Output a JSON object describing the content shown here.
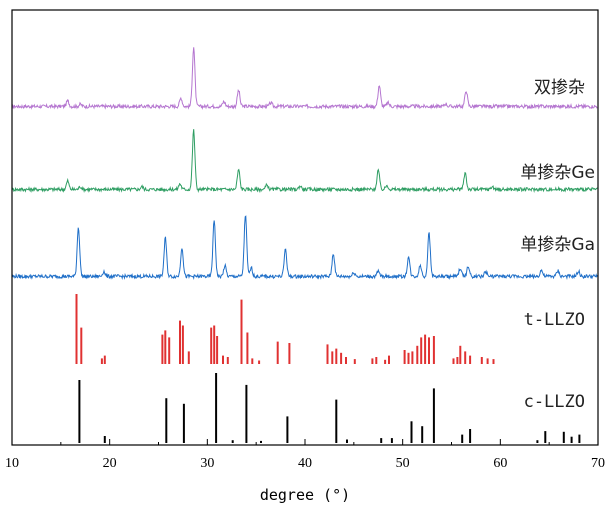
{
  "chart_data": {
    "type": "line",
    "xlabel": "degree (°)",
    "ylabel": "",
    "xlim": [
      10,
      70
    ],
    "xticks": [
      10,
      20,
      30,
      40,
      50,
      60,
      70
    ],
    "grid": false,
    "y_axis_ticks": false,
    "series": [
      {
        "name": "双掺杂",
        "style": "line",
        "color": "#b576d0",
        "baseline": 0.08,
        "peaks": [
          {
            "x": 15.7,
            "y": 0.08
          },
          {
            "x": 17.0,
            "y": 0.03
          },
          {
            "x": 27.3,
            "y": 0.12
          },
          {
            "x": 28.6,
            "y": 0.85
          },
          {
            "x": 31.7,
            "y": 0.07
          },
          {
            "x": 33.2,
            "y": 0.23
          },
          {
            "x": 36.5,
            "y": 0.05
          },
          {
            "x": 47.6,
            "y": 0.3
          },
          {
            "x": 48.5,
            "y": 0.05
          },
          {
            "x": 54.4,
            "y": 0.04
          },
          {
            "x": 56.5,
            "y": 0.23
          }
        ]
      },
      {
        "name": "单掺杂Ge",
        "style": "line",
        "color": "#2f9e63",
        "baseline": 0.08,
        "peaks": [
          {
            "x": 15.7,
            "y": 0.12
          },
          {
            "x": 17.0,
            "y": 0.04
          },
          {
            "x": 23.3,
            "y": 0.04
          },
          {
            "x": 27.2,
            "y": 0.08
          },
          {
            "x": 28.6,
            "y": 0.85
          },
          {
            "x": 33.2,
            "y": 0.28
          },
          {
            "x": 36.1,
            "y": 0.06
          },
          {
            "x": 39.5,
            "y": 0.05
          },
          {
            "x": 47.5,
            "y": 0.28
          },
          {
            "x": 48.4,
            "y": 0.06
          },
          {
            "x": 56.4,
            "y": 0.24
          },
          {
            "x": 59.2,
            "y": 0.04
          }
        ]
      },
      {
        "name": "单掺杂Ga",
        "style": "line",
        "color": "#1f6fc8",
        "baseline": 0.08,
        "peaks": [
          {
            "x": 16.8,
            "y": 0.7
          },
          {
            "x": 19.4,
            "y": 0.07
          },
          {
            "x": 25.7,
            "y": 0.55
          },
          {
            "x": 27.4,
            "y": 0.42
          },
          {
            "x": 30.7,
            "y": 0.8
          },
          {
            "x": 31.8,
            "y": 0.15
          },
          {
            "x": 33.9,
            "y": 0.88
          },
          {
            "x": 34.5,
            "y": 0.12
          },
          {
            "x": 38.0,
            "y": 0.4
          },
          {
            "x": 42.9,
            "y": 0.33
          },
          {
            "x": 45.0,
            "y": 0.06
          },
          {
            "x": 47.5,
            "y": 0.07
          },
          {
            "x": 50.6,
            "y": 0.28
          },
          {
            "x": 51.8,
            "y": 0.16
          },
          {
            "x": 52.7,
            "y": 0.62
          },
          {
            "x": 55.9,
            "y": 0.12
          },
          {
            "x": 56.7,
            "y": 0.14
          },
          {
            "x": 58.5,
            "y": 0.07
          },
          {
            "x": 64.2,
            "y": 0.09
          },
          {
            "x": 65.9,
            "y": 0.08
          },
          {
            "x": 68.0,
            "y": 0.07
          }
        ]
      },
      {
        "name": "t-LLZO",
        "style": "sticks",
        "color": "#e03131",
        "sticks": [
          {
            "x": 16.6,
            "y": 1.0
          },
          {
            "x": 17.1,
            "y": 0.52
          },
          {
            "x": 19.2,
            "y": 0.08
          },
          {
            "x": 19.5,
            "y": 0.12
          },
          {
            "x": 25.4,
            "y": 0.42
          },
          {
            "x": 25.7,
            "y": 0.48
          },
          {
            "x": 26.1,
            "y": 0.38
          },
          {
            "x": 27.2,
            "y": 0.62
          },
          {
            "x": 27.5,
            "y": 0.55
          },
          {
            "x": 28.1,
            "y": 0.18
          },
          {
            "x": 30.4,
            "y": 0.52
          },
          {
            "x": 30.7,
            "y": 0.55
          },
          {
            "x": 31.0,
            "y": 0.4
          },
          {
            "x": 31.6,
            "y": 0.12
          },
          {
            "x": 32.1,
            "y": 0.1
          },
          {
            "x": 33.5,
            "y": 0.92
          },
          {
            "x": 34.1,
            "y": 0.45
          },
          {
            "x": 34.6,
            "y": 0.08
          },
          {
            "x": 35.3,
            "y": 0.05
          },
          {
            "x": 37.2,
            "y": 0.32
          },
          {
            "x": 38.4,
            "y": 0.3
          },
          {
            "x": 42.3,
            "y": 0.28
          },
          {
            "x": 42.8,
            "y": 0.18
          },
          {
            "x": 43.2,
            "y": 0.22
          },
          {
            "x": 43.7,
            "y": 0.16
          },
          {
            "x": 44.2,
            "y": 0.1
          },
          {
            "x": 45.1,
            "y": 0.07
          },
          {
            "x": 46.9,
            "y": 0.08
          },
          {
            "x": 47.3,
            "y": 0.1
          },
          {
            "x": 48.2,
            "y": 0.06
          },
          {
            "x": 48.6,
            "y": 0.12
          },
          {
            "x": 50.2,
            "y": 0.2
          },
          {
            "x": 50.6,
            "y": 0.16
          },
          {
            "x": 51.0,
            "y": 0.18
          },
          {
            "x": 51.5,
            "y": 0.26
          },
          {
            "x": 51.9,
            "y": 0.38
          },
          {
            "x": 52.3,
            "y": 0.42
          },
          {
            "x": 52.7,
            "y": 0.38
          },
          {
            "x": 53.2,
            "y": 0.4
          },
          {
            "x": 55.2,
            "y": 0.08
          },
          {
            "x": 55.6,
            "y": 0.1
          },
          {
            "x": 55.9,
            "y": 0.26
          },
          {
            "x": 56.4,
            "y": 0.18
          },
          {
            "x": 56.9,
            "y": 0.12
          },
          {
            "x": 58.1,
            "y": 0.1
          },
          {
            "x": 58.7,
            "y": 0.08
          },
          {
            "x": 59.3,
            "y": 0.07
          }
        ]
      },
      {
        "name": "c-LLZO",
        "style": "sticks",
        "color": "#000000",
        "sticks": [
          {
            "x": 16.9,
            "y": 0.9
          },
          {
            "x": 19.5,
            "y": 0.1
          },
          {
            "x": 25.8,
            "y": 0.64
          },
          {
            "x": 27.6,
            "y": 0.56
          },
          {
            "x": 30.9,
            "y": 1.0
          },
          {
            "x": 32.6,
            "y": 0.04
          },
          {
            "x": 34.0,
            "y": 0.83
          },
          {
            "x": 35.5,
            "y": 0.03
          },
          {
            "x": 38.2,
            "y": 0.38
          },
          {
            "x": 43.2,
            "y": 0.62
          },
          {
            "x": 44.3,
            "y": 0.05
          },
          {
            "x": 47.8,
            "y": 0.07
          },
          {
            "x": 48.9,
            "y": 0.07
          },
          {
            "x": 50.9,
            "y": 0.31
          },
          {
            "x": 52.0,
            "y": 0.24
          },
          {
            "x": 53.2,
            "y": 0.78
          },
          {
            "x": 56.1,
            "y": 0.12
          },
          {
            "x": 56.9,
            "y": 0.2
          },
          {
            "x": 63.8,
            "y": 0.04
          },
          {
            "x": 64.6,
            "y": 0.17
          },
          {
            "x": 66.5,
            "y": 0.16
          },
          {
            "x": 67.3,
            "y": 0.09
          },
          {
            "x": 68.1,
            "y": 0.12
          }
        ]
      }
    ]
  }
}
